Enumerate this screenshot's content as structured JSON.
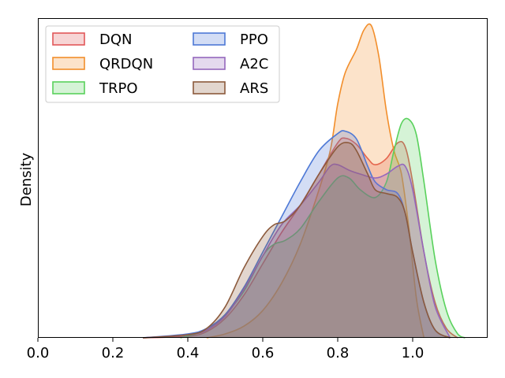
{
  "chart_data": {
    "type": "area",
    "title": "",
    "xlabel": "",
    "ylabel": "Density",
    "xlim": [
      0.0,
      1.2
    ],
    "ylim": [
      0,
      4.1
    ],
    "x_ticks": [
      "0.0",
      "0.2",
      "0.4",
      "0.6",
      "0.8",
      "1.0"
    ],
    "x_tick_values": [
      0.0,
      0.2,
      0.4,
      0.6,
      0.8,
      1.0
    ],
    "y_ticks_visible": false,
    "grid": false,
    "legend": {
      "placement": "top-left",
      "columns": 2
    },
    "fill_opacity": 0.25,
    "series": [
      {
        "name": "DQN",
        "color": "#e15759",
        "x": [
          0.28,
          0.4,
          0.45,
          0.5,
          0.55,
          0.6,
          0.65,
          0.7,
          0.75,
          0.8,
          0.82,
          0.85,
          0.88,
          0.9,
          0.93,
          0.96,
          0.98,
          1.0,
          1.03,
          1.06,
          1.09,
          1.12
        ],
        "y": [
          0.0,
          0.02,
          0.08,
          0.25,
          0.55,
          0.95,
          1.35,
          1.7,
          2.1,
          2.5,
          2.56,
          2.48,
          2.3,
          2.22,
          2.3,
          2.5,
          2.45,
          2.0,
          1.1,
          0.45,
          0.12,
          0.0
        ]
      },
      {
        "name": "QRDQN",
        "color": "#f28e2b",
        "x": [
          0.45,
          0.5,
          0.55,
          0.6,
          0.65,
          0.7,
          0.75,
          0.78,
          0.8,
          0.82,
          0.85,
          0.87,
          0.89,
          0.91,
          0.93,
          0.95,
          0.97,
          0.99,
          1.01,
          1.03
        ],
        "y": [
          0.0,
          0.05,
          0.15,
          0.35,
          0.7,
          1.2,
          1.9,
          2.4,
          3.0,
          3.4,
          3.7,
          3.95,
          4.0,
          3.6,
          2.9,
          2.4,
          2.1,
          1.4,
          0.5,
          0.0
        ]
      },
      {
        "name": "TRPO",
        "color": "#59d15c",
        "x": [
          0.38,
          0.45,
          0.5,
          0.55,
          0.6,
          0.63,
          0.66,
          0.7,
          0.75,
          0.8,
          0.83,
          0.86,
          0.9,
          0.93,
          0.95,
          0.97,
          0.99,
          1.01,
          1.03,
          1.06,
          1.09,
          1.12,
          1.14
        ],
        "y": [
          0.0,
          0.1,
          0.3,
          0.6,
          1.05,
          1.2,
          1.25,
          1.4,
          1.75,
          2.05,
          2.05,
          1.9,
          1.8,
          2.0,
          2.4,
          2.75,
          2.8,
          2.6,
          2.0,
          1.0,
          0.35,
          0.05,
          0.0
        ]
      },
      {
        "name": "PPO",
        "color": "#4e79d6",
        "x": [
          0.28,
          0.4,
          0.45,
          0.5,
          0.55,
          0.6,
          0.65,
          0.7,
          0.75,
          0.8,
          0.82,
          0.85,
          0.88,
          0.9,
          0.93,
          0.96,
          0.98,
          1.0,
          1.03,
          1.06,
          1.1
        ],
        "y": [
          0.0,
          0.05,
          0.12,
          0.3,
          0.65,
          1.1,
          1.55,
          2.0,
          2.4,
          2.62,
          2.65,
          2.55,
          2.2,
          2.0,
          1.9,
          1.85,
          1.6,
          1.1,
          0.45,
          0.1,
          0.0
        ]
      },
      {
        "name": "A2C",
        "color": "#9467bd",
        "x": [
          0.28,
          0.4,
          0.45,
          0.5,
          0.55,
          0.6,
          0.65,
          0.7,
          0.75,
          0.78,
          0.8,
          0.83,
          0.86,
          0.9,
          0.93,
          0.96,
          0.98,
          1.0,
          1.03,
          1.06,
          1.1
        ],
        "y": [
          0.0,
          0.04,
          0.1,
          0.28,
          0.62,
          1.05,
          1.45,
          1.7,
          2.0,
          2.2,
          2.22,
          2.15,
          2.1,
          2.05,
          2.1,
          2.2,
          2.2,
          1.9,
          1.1,
          0.4,
          0.0
        ]
      },
      {
        "name": "ARS",
        "color": "#8c5a3c",
        "x": [
          0.28,
          0.4,
          0.45,
          0.5,
          0.55,
          0.6,
          0.63,
          0.66,
          0.7,
          0.75,
          0.8,
          0.83,
          0.85,
          0.88,
          0.9,
          0.93,
          0.96,
          0.98,
          1.0,
          1.03,
          1.06,
          1.1
        ],
        "y": [
          0.0,
          0.04,
          0.12,
          0.4,
          0.9,
          1.3,
          1.45,
          1.5,
          1.7,
          2.1,
          2.45,
          2.5,
          2.4,
          2.1,
          1.9,
          1.85,
          1.8,
          1.6,
          1.1,
          0.45,
          0.1,
          0.0
        ]
      }
    ]
  }
}
